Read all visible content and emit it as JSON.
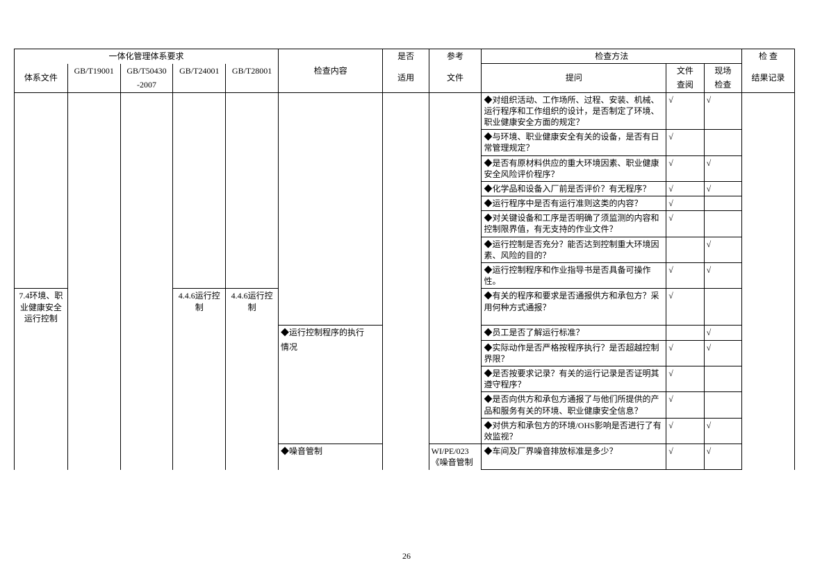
{
  "header": {
    "h_integration": "一体化管理体系要求",
    "h_check_content": "检查内容",
    "h_yesno": "是否",
    "h_ref": "参考",
    "h_check_method": "检查方法",
    "h_check_result": "检 查",
    "h_sysdoc": "体系文件",
    "h_gb19001": "GB/T19001",
    "h_gb50430": "GB/T50430",
    "h_gb50430_sub": "-2007",
    "h_gb24001": "GB/T24001",
    "h_gb28001": "GB/T28001",
    "h_apply": "适用",
    "h_doc": "文件",
    "h_ask": "提问",
    "h_doc_review": "文件",
    "h_doc_review2": "查阅",
    "h_site": "现场",
    "h_site2": "检查",
    "h_record": "结果记录"
  },
  "rows": [
    {
      "sysdoc": "",
      "g19": "",
      "g50": "",
      "g24": "",
      "g28": "",
      "content": "",
      "apply": "",
      "ref": "",
      "ask": "◆对组织活动、工作场所、过程、安装、机械、运行程序和工作组织的设计，是否制定了环境、职业健康安全方面的规定？",
      "docrev": "√",
      "site": "√",
      "res": "",
      "flags": {
        "sysdoc_nob": "notb nobb",
        "g19_nob": "notb nobb",
        "g50_nob": "notb nobb",
        "g24_nob": "notb nobb",
        "g28_nob": "notb nobb",
        "content_nob": "notb nobb",
        "apply_nob": "notb nobb",
        "ref_nob": "notb nobb",
        "res_nob": "notb nobb"
      }
    },
    {
      "sysdoc": "",
      "g19": "",
      "g50": "",
      "g24": "",
      "g28": "",
      "content": "",
      "apply": "",
      "ref": "",
      "ask": "◆与环境、职业健康安全有关的设备，是否有日常管理规定？",
      "docrev": "√",
      "site": "",
      "res": "",
      "flags": {
        "sysdoc_nob": "notb nobb",
        "g19_nob": "notb nobb",
        "g50_nob": "notb nobb",
        "g24_nob": "notb nobb",
        "g28_nob": "notb nobb",
        "content_nob": "notb nobb",
        "apply_nob": "notb nobb",
        "ref_nob": "notb nobb",
        "res_nob": "notb nobb"
      }
    },
    {
      "sysdoc": "",
      "g19": "",
      "g50": "",
      "g24": "",
      "g28": "",
      "content": "",
      "apply": "",
      "ref": "",
      "ask": "◆是否有原材料供应的重大环境因素、职业健康安全风险评价程序？",
      "docrev": "√",
      "site": "√",
      "res": "",
      "flags": {
        "sysdoc_nob": "notb nobb",
        "g19_nob": "notb nobb",
        "g50_nob": "notb nobb",
        "g24_nob": "notb nobb",
        "g28_nob": "notb nobb",
        "content_nob": "notb nobb",
        "apply_nob": "notb nobb",
        "ref_nob": "notb nobb",
        "res_nob": "notb nobb"
      }
    },
    {
      "sysdoc": "",
      "g19": "",
      "g50": "",
      "g24": "",
      "g28": "",
      "content": "",
      "apply": "",
      "ref": "",
      "ask": "◆化学品和设备入厂前是否评价？有无程序？",
      "docrev": "√",
      "site": "√",
      "res": "",
      "flags": {
        "sysdoc_nob": "notb nobb",
        "g19_nob": "notb nobb",
        "g50_nob": "notb nobb",
        "g24_nob": "notb nobb",
        "g28_nob": "notb nobb",
        "content_nob": "notb nobb",
        "apply_nob": "notb nobb",
        "ref_nob": "notb nobb",
        "res_nob": "notb nobb"
      }
    },
    {
      "sysdoc": "",
      "g19": "",
      "g50": "",
      "g24": "",
      "g28": "",
      "content": "",
      "apply": "",
      "ref": "",
      "ask": "◆运行程序中是否有运行准则这类的内容？",
      "docrev": "√",
      "site": "",
      "res": "",
      "flags": {
        "sysdoc_nob": "notb nobb",
        "g19_nob": "notb nobb",
        "g50_nob": "notb nobb",
        "g24_nob": "notb nobb",
        "g28_nob": "notb nobb",
        "content_nob": "notb nobb",
        "apply_nob": "notb nobb",
        "ref_nob": "notb nobb",
        "res_nob": "notb nobb"
      }
    },
    {
      "sysdoc": "",
      "g19": "",
      "g50": "",
      "g24": "",
      "g28": "",
      "content": "",
      "apply": "",
      "ref": "",
      "ask": "◆对关键设备和工序是否明确了须监测的内容和控制限界值，有无支持的作业文件？",
      "docrev": "√",
      "site": "",
      "res": "",
      "flags": {
        "sysdoc_nob": "notb nobb",
        "g19_nob": "notb nobb",
        "g50_nob": "notb nobb",
        "g24_nob": "notb nobb",
        "g28_nob": "notb nobb",
        "content_nob": "notb nobb",
        "apply_nob": "notb nobb",
        "ref_nob": "notb nobb",
        "res_nob": "notb nobb"
      }
    },
    {
      "sysdoc": "",
      "g19": "",
      "g50": "",
      "g24": "",
      "g28": "",
      "content": "",
      "apply": "",
      "ref": "",
      "ask": "◆运行控制是否充分？能否达到控制重大环境因素、风险的目的？",
      "docrev": "",
      "site": "√",
      "res": "",
      "flags": {
        "sysdoc_nob": "notb nobb",
        "g19_nob": "notb nobb",
        "g50_nob": "notb nobb",
        "g24_nob": "notb nobb",
        "g28_nob": "notb nobb",
        "content_nob": "notb nobb",
        "apply_nob": "notb nobb",
        "ref_nob": "notb nobb",
        "res_nob": "notb nobb"
      }
    },
    {
      "sysdoc": "",
      "g19": "",
      "g50": "",
      "g24": "",
      "g28": "",
      "content": "",
      "apply": "",
      "ref": "",
      "ask": "◆运行控制程序和作业指导书是否具备可操作性。",
      "docrev": "√",
      "site": "√",
      "res": "",
      "flags": {
        "sysdoc_nob": "notb nobb",
        "g19_nob": "notb nobb",
        "g50_nob": "notb nobb",
        "g24_nob": "notb nobb",
        "g28_nob": "notb nobb",
        "content_nob": "notb nobb",
        "apply_nob": "notb nobb",
        "ref_nob": "notb nobb",
        "res_nob": "notb nobb"
      }
    },
    {
      "sysdoc": "7.4环境、职业健康安全运行控制",
      "g19": "",
      "g50": "",
      "g24": "4.4.6运行控制",
      "g28": "4.4.6运行控制",
      "content": "",
      "apply": "",
      "ref": "",
      "ask": "◆有关的程序和要求是否通报供方和承包方？采用何种方式通报？",
      "docrev": "√",
      "site": "",
      "res": "",
      "flags": {
        "sysdoc_nob": "nobb",
        "g19_nob": "notb nobb",
        "g50_nob": "notb nobb",
        "g24_nob": "nobb",
        "g28_nob": "nobb",
        "content_nob": "notb nobb",
        "apply_nob": "notb nobb",
        "ref_nob": "notb nobb",
        "res_nob": "notb nobb"
      }
    },
    {
      "sysdoc": "",
      "g19": "",
      "g50": "",
      "g24": "",
      "g28": "",
      "content": "◆运行控制程序的执行",
      "apply": "",
      "ref": "",
      "ask": "◆员工是否了解运行标准？",
      "docrev": "",
      "site": "√",
      "res": "",
      "flags": {
        "sysdoc_nob": "notb nobb",
        "g19_nob": "notb nobb",
        "g50_nob": "notb nobb",
        "g24_nob": "notb nobb",
        "g28_nob": "notb nobb",
        "content_nob": "nobb",
        "apply_nob": "notb nobb",
        "ref_nob": "notb nobb",
        "res_nob": "notb nobb"
      }
    },
    {
      "sysdoc": "",
      "g19": "",
      "g50": "",
      "g24": "",
      "g28": "",
      "content": "情况",
      "apply": "",
      "ref": "",
      "ask": "◆实际动作是否严格按程序执行？是否超越控制界限？",
      "docrev": "√",
      "site": "√",
      "res": "",
      "flags": {
        "sysdoc_nob": "notb nobb",
        "g19_nob": "notb nobb",
        "g50_nob": "notb nobb",
        "g24_nob": "notb nobb",
        "g28_nob": "notb nobb",
        "content_nob": "notb nobb",
        "apply_nob": "notb nobb",
        "ref_nob": "notb nobb",
        "res_nob": "notb nobb"
      }
    },
    {
      "sysdoc": "",
      "g19": "",
      "g50": "",
      "g24": "",
      "g28": "",
      "content": "",
      "apply": "",
      "ref": "",
      "ask": "◆是否按要求记录？有关的运行记录是否证明其遵守程序？",
      "docrev": "√",
      "site": "",
      "res": "",
      "flags": {
        "sysdoc_nob": "notb nobb",
        "g19_nob": "notb nobb",
        "g50_nob": "notb nobb",
        "g24_nob": "notb nobb",
        "g28_nob": "notb nobb",
        "content_nob": "notb nobb",
        "apply_nob": "notb nobb",
        "ref_nob": "notb nobb",
        "res_nob": "notb nobb"
      }
    },
    {
      "sysdoc": "",
      "g19": "",
      "g50": "",
      "g24": "",
      "g28": "",
      "content": "",
      "apply": "",
      "ref": "",
      "ask": "◆是否向供方和承包方通报了与他们所提供的产品和服务有关的环境、职业健康安全信息？",
      "docrev": "√",
      "site": "",
      "res": "",
      "flags": {
        "sysdoc_nob": "notb nobb",
        "g19_nob": "notb nobb",
        "g50_nob": "notb nobb",
        "g24_nob": "notb nobb",
        "g28_nob": "notb nobb",
        "content_nob": "notb nobb",
        "apply_nob": "notb nobb",
        "ref_nob": "notb nobb",
        "res_nob": "notb nobb"
      }
    },
    {
      "sysdoc": "",
      "g19": "",
      "g50": "",
      "g24": "",
      "g28": "",
      "content": "",
      "apply": "",
      "ref": "",
      "ask": "◆对供方和承包方的环境/OHS影响是否进行了有效监视？",
      "docrev": "√",
      "site": "√",
      "res": "",
      "flags": {
        "sysdoc_nob": "notb nobb",
        "g19_nob": "notb nobb",
        "g50_nob": "notb nobb",
        "g24_nob": "notb nobb",
        "g28_nob": "notb nobb",
        "content_nob": "notb nobb",
        "apply_nob": "notb nobb",
        "ref_nob": "notb nobb",
        "res_nob": "notb nobb"
      }
    },
    {
      "sysdoc": "",
      "g19": "",
      "g50": "",
      "g24": "",
      "g28": "",
      "content": "◆噪音管制",
      "apply": "",
      "ref": "WI/PE/023《噪音管制",
      "ask": "◆车间及厂界噪音排放标准是多少？",
      "docrev": "√",
      "site": "√",
      "res": "",
      "flags": {
        "sysdoc_nob": "notb nobb",
        "g19_nob": "notb nobb",
        "g50_nob": "notb nobb",
        "g24_nob": "notb nobb",
        "g28_nob": "notb nobb",
        "content_nob": "nobb",
        "apply_nob": "notb nobb",
        "ref_nob": "nobb",
        "res_nob": "notb nobb"
      }
    }
  ],
  "colwidths": {
    "sysdoc": 72,
    "g19": 71,
    "g50": 71,
    "g24": 71,
    "g28": 71,
    "content": 141,
    "apply": 62,
    "ref": 71,
    "ask": 249,
    "docrev": 51,
    "site": 51,
    "res": 71
  },
  "page_number": "26"
}
